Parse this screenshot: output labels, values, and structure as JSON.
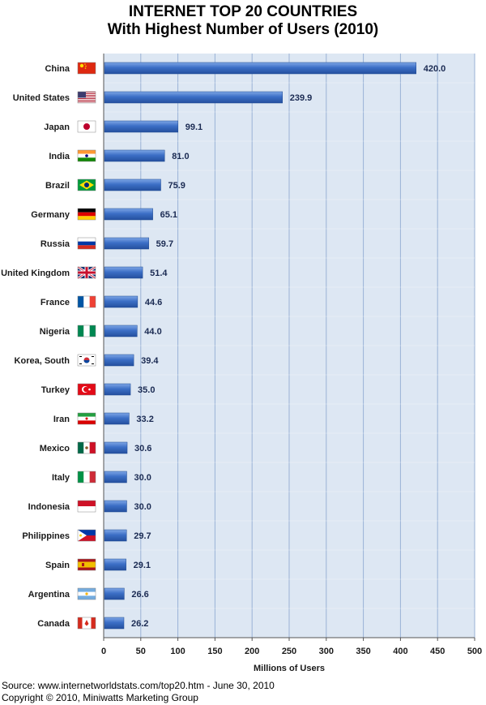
{
  "chart_data": {
    "type": "bar",
    "orientation": "horizontal",
    "title": "INTERNET TOP 20 COUNTRIES",
    "subtitle": "With Highest Number of Users (2010)",
    "xlabel": "Millions of Users",
    "ylabel": "",
    "xlim": [
      0,
      500
    ],
    "xticks": [
      "0",
      "50",
      "100",
      "150",
      "200",
      "250",
      "300",
      "350",
      "400",
      "450",
      "500"
    ],
    "grid": true,
    "categories": [
      "China",
      "United States",
      "Japan",
      "India",
      "Brazil",
      "Germany",
      "Russia",
      "United Kingdom",
      "France",
      "Nigeria",
      "Korea, South",
      "Turkey",
      "Iran",
      "Mexico",
      "Italy",
      "Indonesia",
      "Philippines",
      "Spain",
      "Argentina",
      "Canada"
    ],
    "values": [
      420.0,
      239.9,
      99.1,
      81.0,
      75.9,
      65.1,
      59.7,
      51.4,
      44.6,
      44.0,
      39.4,
      35.0,
      33.2,
      30.6,
      30.0,
      30.0,
      29.7,
      29.1,
      26.6,
      26.2
    ],
    "value_labels": [
      "420.0",
      "239.9",
      "99.1",
      "81.0",
      "75.9",
      "65.1",
      "59.7",
      "51.4",
      "44.6",
      "44.0",
      "39.4",
      "35.0",
      "33.2",
      "30.6",
      "30.0",
      "30.0",
      "29.7",
      "29.1",
      "26.6",
      "26.2"
    ],
    "flag_icons": [
      "flag-china-icon",
      "flag-united-states-icon",
      "flag-japan-icon",
      "flag-india-icon",
      "flag-brazil-icon",
      "flag-germany-icon",
      "flag-russia-icon",
      "flag-united-kingdom-icon",
      "flag-france-icon",
      "flag-nigeria-icon",
      "flag-south-korea-icon",
      "flag-turkey-icon",
      "flag-iran-icon",
      "flag-mexico-icon",
      "flag-italy-icon",
      "flag-indonesia-icon",
      "flag-philippines-icon",
      "flag-spain-icon",
      "flag-argentina-icon",
      "flag-canada-icon"
    ],
    "colors": {
      "bar": "#2f62b8",
      "bar_light": "#6f9be0",
      "plot_bg": "#dde7f3",
      "grid": "#9ab2d6",
      "label": "#1a2a52"
    }
  },
  "source_line1": "Source: www.internetworldstats.com/top20.htm - June 30, 2010",
  "source_line2": "Copyright © 2010, Miniwatts Marketing Group"
}
